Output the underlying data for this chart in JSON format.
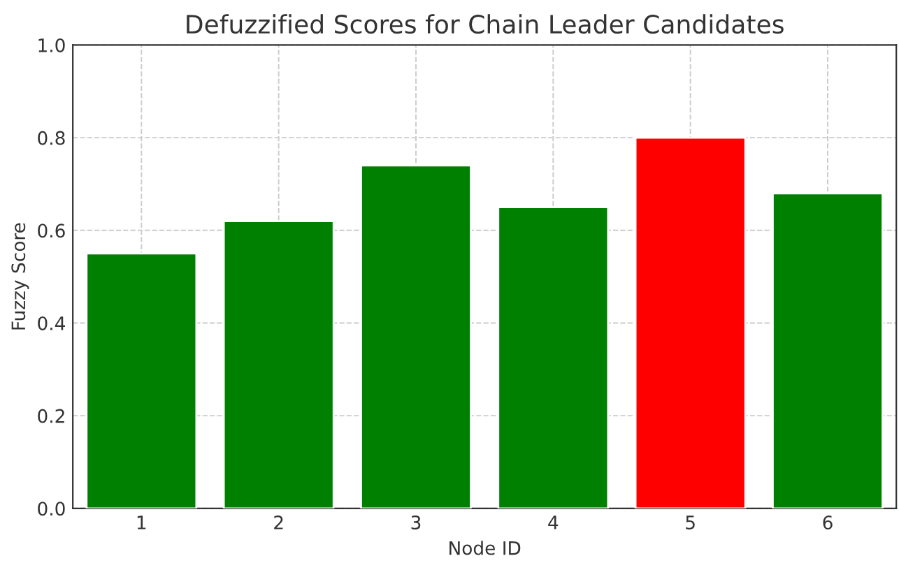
{
  "chart_data": {
    "type": "bar",
    "title": "Defuzzified Scores for Chain Leader Candidates",
    "xlabel": "Node ID",
    "ylabel": "Fuzzy Score",
    "categories": [
      "1",
      "2",
      "3",
      "4",
      "5",
      "6"
    ],
    "values": [
      0.55,
      0.62,
      0.74,
      0.65,
      0.8,
      0.68
    ],
    "colors": [
      "#008000",
      "#008000",
      "#008000",
      "#008000",
      "#ff0000",
      "#008000"
    ],
    "ylim": [
      0,
      1
    ],
    "yticks": [
      {
        "value": 0,
        "label": "0.0"
      },
      {
        "value": 0.2,
        "label": "0.2"
      },
      {
        "value": 0.4,
        "label": "0.4"
      },
      {
        "value": 0.6,
        "label": "0.6"
      },
      {
        "value": 0.8,
        "label": "0.8"
      },
      {
        "value": 1,
        "label": "1.0"
      }
    ],
    "grid": true
  }
}
